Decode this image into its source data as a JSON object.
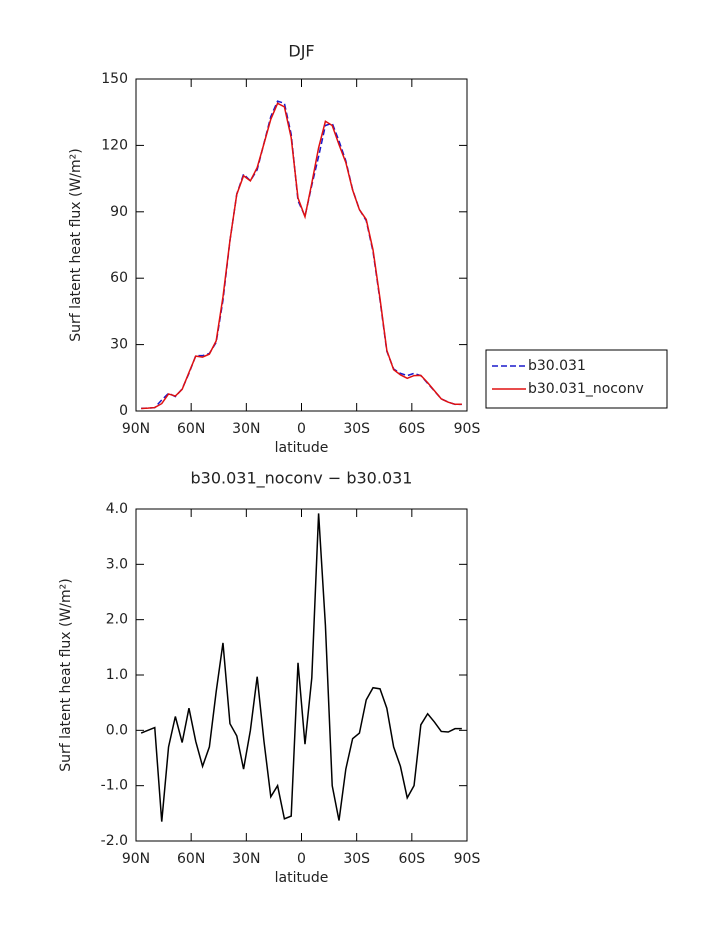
{
  "chart_data": [
    {
      "type": "line",
      "title": "DJF",
      "xlabel": "latitude",
      "ylabel": "Surf latent heat flux (W/m²)",
      "x": [
        87.2,
        83.5,
        79.8,
        76.0,
        72.3,
        68.6,
        64.9,
        61.2,
        57.5,
        53.8,
        50.1,
        46.4,
        42.7,
        38.9,
        35.2,
        31.5,
        27.8,
        24.1,
        20.4,
        16.7,
        13.0,
        9.3,
        5.6,
        1.9,
        -1.9,
        -5.6,
        -9.3,
        -13.0,
        -16.7,
        -20.4,
        -24.1,
        -27.8,
        -31.5,
        -35.2,
        -38.9,
        -42.7,
        -46.4,
        -50.1,
        -53.8,
        -57.5,
        -61.2,
        -64.9,
        -68.6,
        -72.3,
        -76.0,
        -79.8,
        -83.5,
        -87.2
      ],
      "xlim": [
        90,
        -90
      ],
      "xticks": [
        {
          "value": 90,
          "label": "90N"
        },
        {
          "value": 60,
          "label": "60N"
        },
        {
          "value": 30,
          "label": "30N"
        },
        0,
        {
          "value": -30,
          "label": "30S"
        },
        {
          "value": -60,
          "label": "60S"
        },
        {
          "value": -90,
          "label": "90S"
        }
      ],
      "ylim": [
        0,
        150
      ],
      "yticks": [
        0,
        30,
        60,
        90,
        120,
        150
      ],
      "legend": "right",
      "series": [
        {
          "name": "b30.031",
          "color": "#1a1acc",
          "linestyle": "dashed",
          "values": [
            1.2,
            1.3,
            1.5,
            5,
            8,
            6.5,
            10,
            17,
            25,
            25,
            26,
            31,
            50,
            77,
            98,
            107,
            104,
            109,
            121,
            133,
            140,
            139,
            125,
            95,
            88,
            102,
            115,
            129,
            130,
            122,
            113,
            100,
            91,
            86,
            72,
            50,
            27,
            19,
            17,
            16,
            17,
            16,
            12.5,
            9,
            5.5,
            4,
            3,
            3
          ]
        },
        {
          "name": "b30.031_noconv",
          "color": "#e01010",
          "linestyle": "solid",
          "values": [
            1.15,
            1.3,
            1.55,
            3.35,
            7.7,
            6.75,
            9.78,
            17.4,
            24.8,
            24.35,
            25.7,
            31.7,
            51.58,
            77.12,
            97.9,
            106.3,
            104,
            109.97,
            120.8,
            131.8,
            139,
            137.4,
            123.45,
            96.22,
            87.75,
            102.95,
            118.92,
            130.9,
            129,
            120.37,
            112.3,
            99.85,
            90.95,
            86.55,
            72.77,
            50.75,
            27.4,
            18.7,
            16.35,
            14.78,
            16,
            16.1,
            12.8,
            9.15,
            5.48,
            3.97,
            3.03,
            3.03
          ]
        }
      ]
    },
    {
      "type": "line",
      "title": "b30.031_noconv − b30.031",
      "xlabel": "latitude",
      "ylabel": "Surf latent heat flux (W/m²)",
      "x": [
        87.2,
        83.5,
        79.8,
        76.0,
        72.3,
        68.6,
        64.9,
        61.2,
        57.5,
        53.8,
        50.1,
        46.4,
        42.7,
        38.9,
        35.2,
        31.5,
        27.8,
        24.1,
        20.4,
        16.7,
        13.0,
        9.3,
        5.6,
        1.9,
        -1.9,
        -5.6,
        -9.3,
        -13.0,
        -16.7,
        -20.4,
        -24.1,
        -27.8,
        -31.5,
        -35.2,
        -38.9,
        -42.7,
        -46.4,
        -50.1,
        -53.8,
        -57.5,
        -61.2,
        -64.9,
        -68.6,
        -72.3,
        -76.0,
        -79.8,
        -83.5,
        -87.2
      ],
      "xlim": [
        90,
        -90
      ],
      "xticks": [
        {
          "value": 90,
          "label": "90N"
        },
        {
          "value": 60,
          "label": "60N"
        },
        {
          "value": 30,
          "label": "30N"
        },
        0,
        {
          "value": -30,
          "label": "30S"
        },
        {
          "value": -60,
          "label": "60S"
        },
        {
          "value": -90,
          "label": "90S"
        }
      ],
      "ylim": [
        -2,
        4
      ],
      "yticks": [
        {
          "value": -2,
          "label": "-2.0"
        },
        {
          "value": -1,
          "label": "-1.0"
        },
        {
          "value": 0,
          "label": "0.0"
        },
        {
          "value": 1,
          "label": "1.0"
        },
        {
          "value": 2,
          "label": "2.0"
        },
        {
          "value": 3,
          "label": "3.0"
        },
        {
          "value": 4,
          "label": "4.0"
        }
      ],
      "series": [
        {
          "color": "#000000",
          "linestyle": "solid",
          "values": [
            -0.05,
            0,
            0.05,
            -1.65,
            -0.3,
            0.25,
            -0.22,
            0.4,
            -0.2,
            -0.65,
            -0.3,
            0.7,
            1.58,
            0.12,
            -0.1,
            -0.7,
            0,
            0.97,
            -0.2,
            -1.2,
            -1.0,
            -1.6,
            -1.55,
            1.22,
            -0.25,
            0.95,
            3.92,
            1.9,
            -1.0,
            -1.63,
            -0.7,
            -0.15,
            -0.05,
            0.55,
            0.77,
            0.75,
            0.4,
            -0.3,
            -0.65,
            -1.22,
            -1.0,
            0.1,
            0.3,
            0.15,
            -0.02,
            -0.03,
            0.03,
            0.03
          ]
        }
      ]
    }
  ]
}
